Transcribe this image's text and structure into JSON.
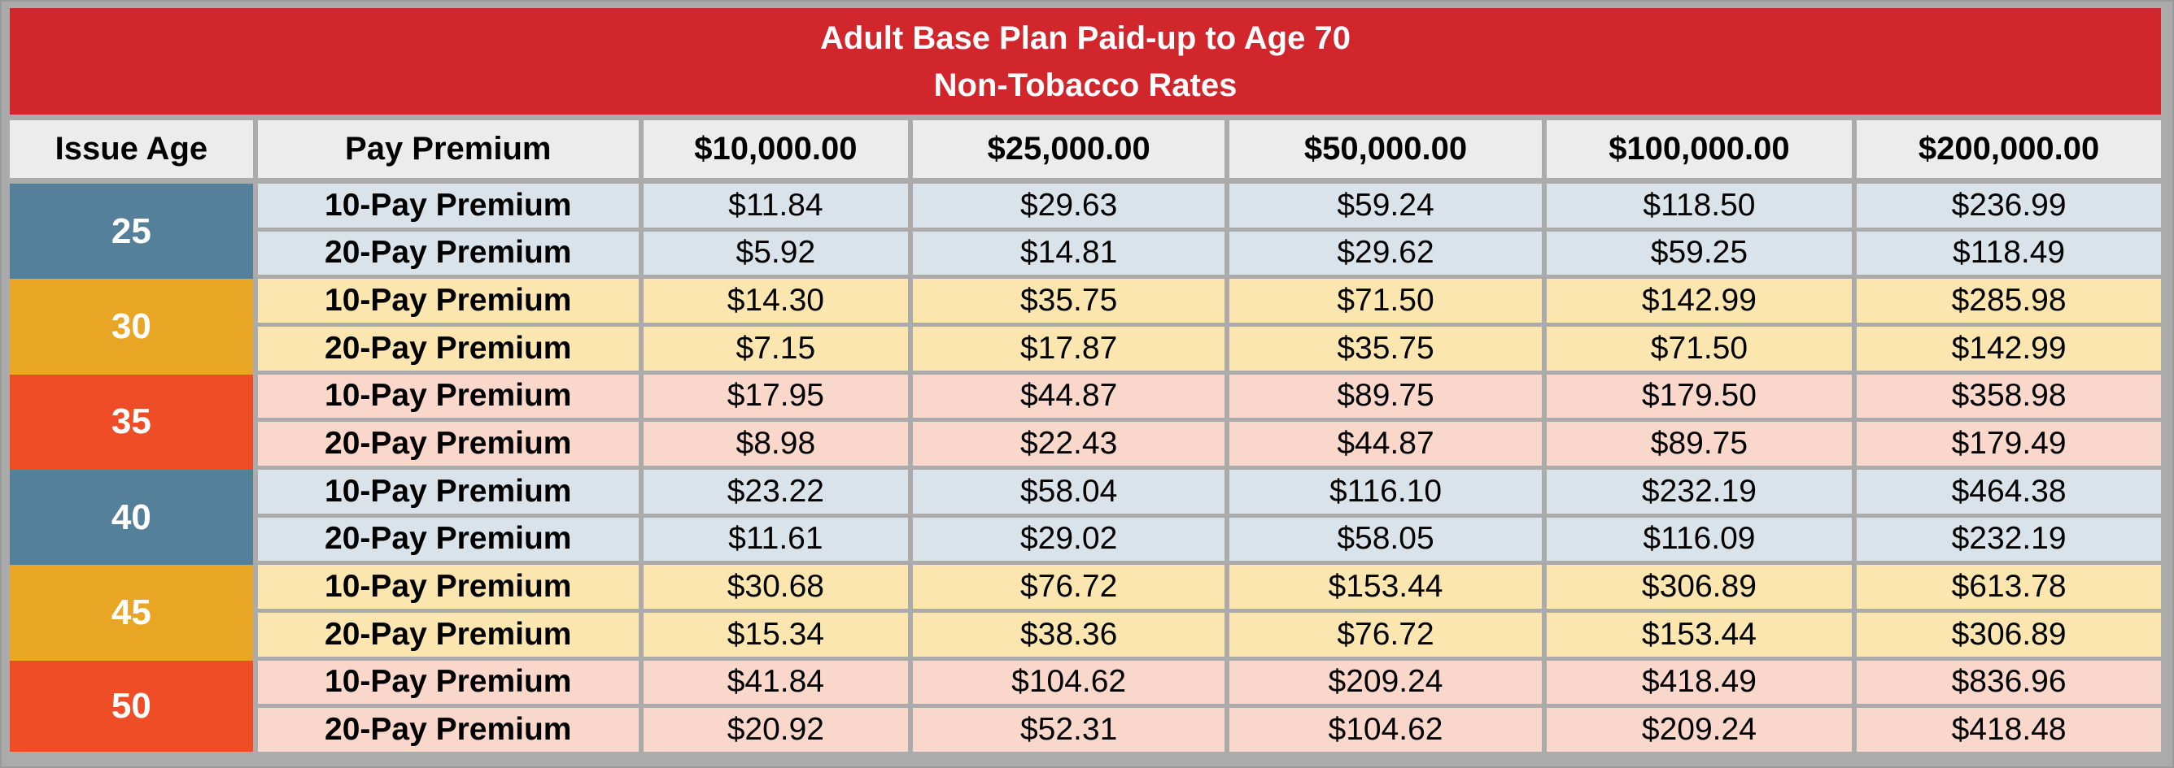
{
  "colors": {
    "frame": "#ABABAB",
    "frame_edge": "#9A9A9A",
    "title_bg": "#D2262D",
    "title_fg": "#FFFFFF",
    "header_bg": "#ECECEC",
    "age_blue": "#548099",
    "age_orange": "#E9A625",
    "age_vermilion": "#EE4D25",
    "row_blue": "#D9E3E9",
    "row_yellow": "#FBE6AF",
    "row_pink": "#F9D7CB"
  },
  "chart_data": {
    "type": "table",
    "title": "Adult Base Plan Paid-up to Age 70",
    "subtitle": "Non-Tobacco Rates",
    "columns": [
      "Issue Age",
      "Pay Premium",
      "$10,000.00",
      "$25,000.00",
      "$50,000.00",
      "$100,000.00",
      "$200,000.00"
    ],
    "row_labels": [
      "10-Pay Premium",
      "20-Pay Premium"
    ],
    "groups": [
      {
        "age": "25",
        "age_color": "#548099",
        "row_bg": "#D9E3E9",
        "rows": [
          [
            "$11.84",
            "$29.63",
            "$59.24",
            "$118.50",
            "$236.99"
          ],
          [
            "$5.92",
            "$14.81",
            "$29.62",
            "$59.25",
            "$118.49"
          ]
        ]
      },
      {
        "age": "30",
        "age_color": "#E9A625",
        "row_bg": "#FBE6AF",
        "rows": [
          [
            "$14.30",
            "$35.75",
            "$71.50",
            "$142.99",
            "$285.98"
          ],
          [
            "$7.15",
            "$17.87",
            "$35.75",
            "$71.50",
            "$142.99"
          ]
        ]
      },
      {
        "age": "35",
        "age_color": "#EE4D25",
        "row_bg": "#F9D7CB",
        "rows": [
          [
            "$17.95",
            "$44.87",
            "$89.75",
            "$179.50",
            "$358.98"
          ],
          [
            "$8.98",
            "$22.43",
            "$44.87",
            "$89.75",
            "$179.49"
          ]
        ]
      },
      {
        "age": "40",
        "age_color": "#548099",
        "row_bg": "#D9E3E9",
        "rows": [
          [
            "$23.22",
            "$58.04",
            "$116.10",
            "$232.19",
            "$464.38"
          ],
          [
            "$11.61",
            "$29.02",
            "$58.05",
            "$116.09",
            "$232.19"
          ]
        ]
      },
      {
        "age": "45",
        "age_color": "#E9A625",
        "row_bg": "#FBE6AF",
        "rows": [
          [
            "$30.68",
            "$76.72",
            "$153.44",
            "$306.89",
            "$613.78"
          ],
          [
            "$15.34",
            "$38.36",
            "$76.72",
            "$153.44",
            "$306.89"
          ]
        ]
      },
      {
        "age": "50",
        "age_color": "#EE4D25",
        "row_bg": "#F9D7CB",
        "rows": [
          [
            "$41.84",
            "$104.62",
            "$209.24",
            "$418.49",
            "$836.96"
          ],
          [
            "$20.92",
            "$52.31",
            "$104.62",
            "$209.24",
            "$418.48"
          ]
        ]
      }
    ]
  }
}
